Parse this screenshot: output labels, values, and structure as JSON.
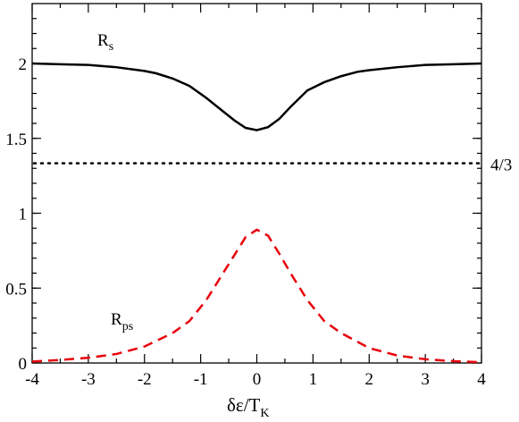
{
  "chart_data": {
    "type": "line",
    "xlabel": {
      "main": "δε/T",
      "sub": "K"
    },
    "ylabel": "",
    "xlim": [
      -4,
      4
    ],
    "ylim": [
      0,
      2.4
    ],
    "x_ticks": [
      -4,
      -3,
      -2,
      -1,
      0,
      1,
      2,
      3,
      4
    ],
    "y_ticks": [
      0,
      0.5,
      1,
      1.5,
      2
    ],
    "x_tick_labels": [
      "-4",
      "-3",
      "-2",
      "-1",
      "0",
      "1",
      "2",
      "3",
      "4"
    ],
    "y_tick_labels": [
      "0",
      "0.5",
      "1",
      "1.5",
      "2"
    ],
    "grid": false,
    "series": [
      {
        "label_main": "R",
        "label_sub": "s",
        "color": "#000000",
        "style": "solid",
        "x": [
          -4,
          -3.5,
          -3,
          -2.5,
          -2,
          -1.8,
          -1.5,
          -1.2,
          -0.9,
          -0.6,
          -0.4,
          -0.2,
          0,
          0.2,
          0.4,
          0.6,
          0.9,
          1.2,
          1.5,
          1.8,
          2,
          2.5,
          3,
          3.5,
          4
        ],
        "y": [
          2.0,
          1.995,
          1.99,
          1.975,
          1.95,
          1.935,
          1.9,
          1.85,
          1.77,
          1.68,
          1.62,
          1.57,
          1.555,
          1.575,
          1.63,
          1.71,
          1.82,
          1.875,
          1.915,
          1.945,
          1.955,
          1.975,
          1.99,
          1.995,
          2.0
        ]
      },
      {
        "label_main": "R",
        "label_sub": "ps",
        "color": "#e8000b",
        "style": "dashed",
        "x": [
          -4,
          -3.5,
          -3,
          -2.5,
          -2,
          -1.5,
          -1.2,
          -0.9,
          -0.6,
          -0.4,
          -0.2,
          0,
          0.2,
          0.4,
          0.6,
          0.9,
          1.2,
          1.5,
          2,
          2.5,
          3,
          3.5,
          4
        ],
        "y": [
          0.01,
          0.02,
          0.035,
          0.06,
          0.11,
          0.2,
          0.28,
          0.42,
          0.6,
          0.72,
          0.84,
          0.89,
          0.85,
          0.73,
          0.6,
          0.42,
          0.28,
          0.2,
          0.1,
          0.05,
          0.025,
          0.012,
          0.005
        ]
      }
    ],
    "reference_line": {
      "y": 1.3333,
      "style": "dotted",
      "color": "#000000",
      "label": "4/3"
    }
  }
}
